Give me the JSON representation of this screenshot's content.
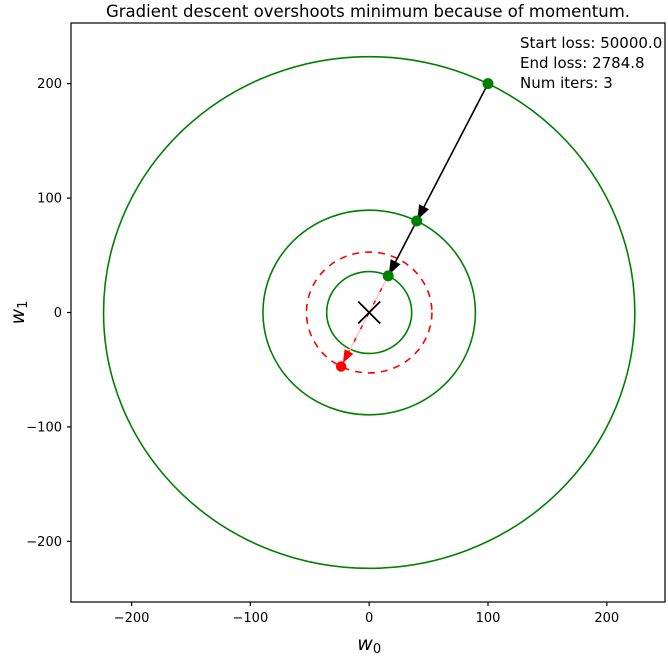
{
  "title": "Gradient descent overshoots minimum because of momentum.",
  "annotation": {
    "lines": [
      "Start loss: 50000.0",
      "End loss: 2784.8",
      "Num iters: 3"
    ]
  },
  "chart_data": {
    "type": "scatter",
    "title": "Gradient descent overshoots minimum because of momentum.",
    "xlabel": {
      "base": "w",
      "sub": "0"
    },
    "ylabel": {
      "base": "w",
      "sub": "1"
    },
    "xlim": [
      -251,
      249
    ],
    "ylim": [
      -253,
      253
    ],
    "xticks": [
      -200,
      -100,
      0,
      100,
      200
    ],
    "yticks": [
      -200,
      -100,
      0,
      100,
      200
    ],
    "grid": false,
    "legend": "none",
    "start_loss": 50000.0,
    "end_loss": 2784.8,
    "num_iters": 3,
    "minimum_point": [
      0,
      0
    ],
    "gd_iterates": [
      [
        100,
        200
      ],
      [
        40,
        80
      ],
      [
        16,
        32
      ]
    ],
    "overshoot_point": [
      -23.6,
      -47.2
    ],
    "green_contour_radii": [
      223.6,
      89.4,
      35.8
    ],
    "red_dashed_contour_radius": 52.8,
    "colors": {
      "contour": "#008000",
      "iterate_marker": "#008000",
      "step_arrow": "#000000",
      "overshoot": "#ff0000",
      "overshoot_faint_line": "#ffc6c6",
      "minimum_marker": "#000000",
      "frame": "#000000"
    }
  }
}
